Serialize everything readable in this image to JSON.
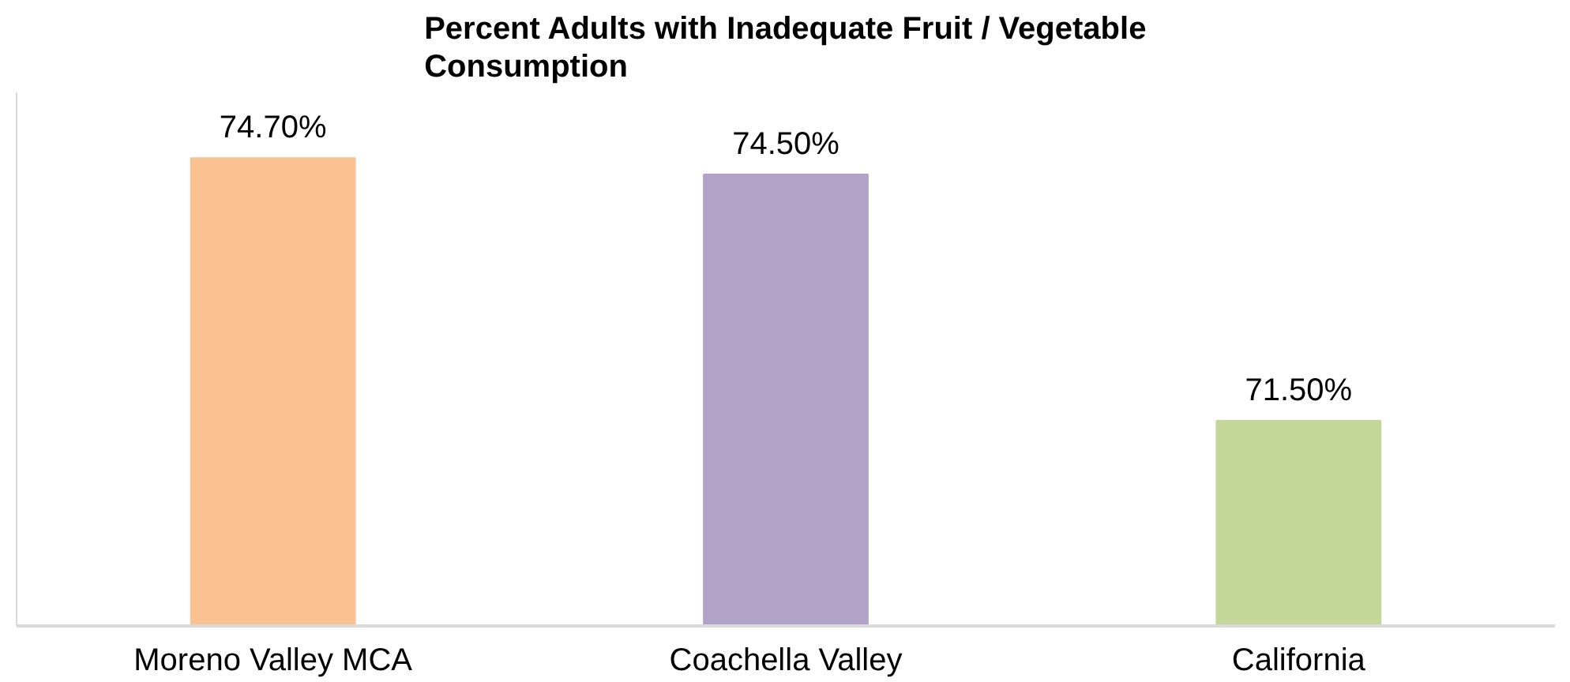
{
  "chart_data": {
    "type": "bar",
    "title": "Percent Adults with Inadequate Fruit / Vegetable Consumption",
    "categories": [
      "Moreno Valley MCA",
      "Coachella Valley",
      "California"
    ],
    "values": [
      74.7,
      74.5,
      71.5
    ],
    "colors": [
      "#f9c290",
      "#b3a2c7",
      "#c4d79b"
    ],
    "value_labels": [
      "74.70%",
      "74.50%",
      "71.50%"
    ],
    "ylim": [
      69,
      75.5
    ],
    "tick_labels": "x",
    "grid": false
  }
}
